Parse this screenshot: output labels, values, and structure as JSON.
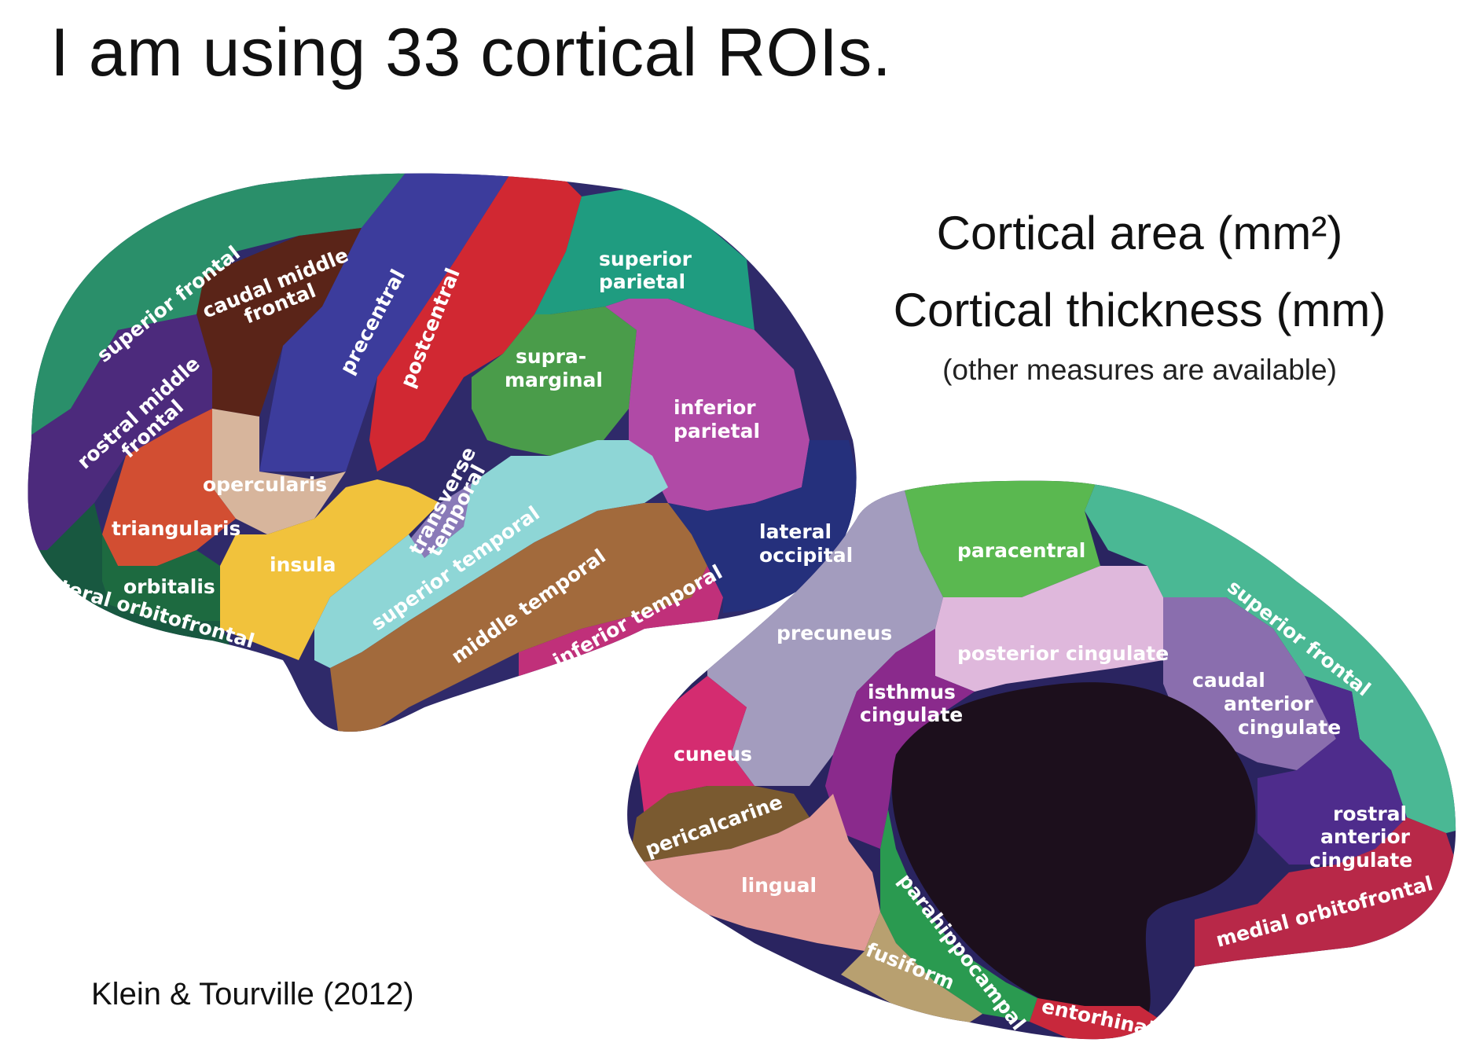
{
  "slide": {
    "title": "I am using 33 cortical ROIs.",
    "measures": [
      "Cortical area (mm²)",
      "Cortical thickness (mm)"
    ],
    "measures_note": "(other measures are available)",
    "citation": "Klein & Tourville (2012)"
  },
  "lateral_view": {
    "regions": [
      {
        "name": "superior frontal",
        "color": "#2a8f6a"
      },
      {
        "name": "caudal middle frontal",
        "color": "#5a2418"
      },
      {
        "name": "precentral",
        "color": "#3c3c9c"
      },
      {
        "name": "postcentral",
        "color": "#d12832"
      },
      {
        "name": "superior parietal",
        "color": "#1f9c80"
      },
      {
        "name": "supra-marginal",
        "color": "#4a9c4a"
      },
      {
        "name": "inferior parietal",
        "color": "#b04aa6"
      },
      {
        "name": "rostral middle frontal",
        "color": "#4c2a7c"
      },
      {
        "name": "opercularis",
        "color": "#d7b59c"
      },
      {
        "name": "triangularis",
        "color": "#d24e32"
      },
      {
        "name": "orbitalis",
        "color": "#1d6a40"
      },
      {
        "name": "lateral orbitofrontal",
        "color": "#185840"
      },
      {
        "name": "insula",
        "color": "#f1c23c"
      },
      {
        "name": "transverse temporal",
        "color": "#8a7ab8"
      },
      {
        "name": "superior temporal",
        "color": "#8ed6d6"
      },
      {
        "name": "middle temporal",
        "color": "#a26a3c"
      },
      {
        "name": "inferior temporal",
        "color": "#c0307a"
      },
      {
        "name": "lateral occipital",
        "color": "#25307c"
      }
    ]
  },
  "medial_view": {
    "regions": [
      {
        "name": "paracentral",
        "color": "#5ab850"
      },
      {
        "name": "superior frontal",
        "color": "#4ab894"
      },
      {
        "name": "precuneus",
        "color": "#a39cbe"
      },
      {
        "name": "posterior cingulate",
        "color": "#dfb8dc"
      },
      {
        "name": "isthmus cingulate",
        "color": "#8a2a8c"
      },
      {
        "name": "caudal anterior cingulate",
        "color": "#8a6eae"
      },
      {
        "name": "rostral anterior cingulate",
        "color": "#4e2c8c"
      },
      {
        "name": "cuneus",
        "color": "#d42c70"
      },
      {
        "name": "pericalcarine",
        "color": "#7a5a30"
      },
      {
        "name": "lingual",
        "color": "#e29a96"
      },
      {
        "name": "parahippocampal",
        "color": "#2a9a50"
      },
      {
        "name": "fusiform",
        "color": "#b8a070"
      },
      {
        "name": "entorhinal",
        "color": "#c8283c"
      },
      {
        "name": "medial orbitofrontal",
        "color": "#b82848"
      }
    ]
  }
}
